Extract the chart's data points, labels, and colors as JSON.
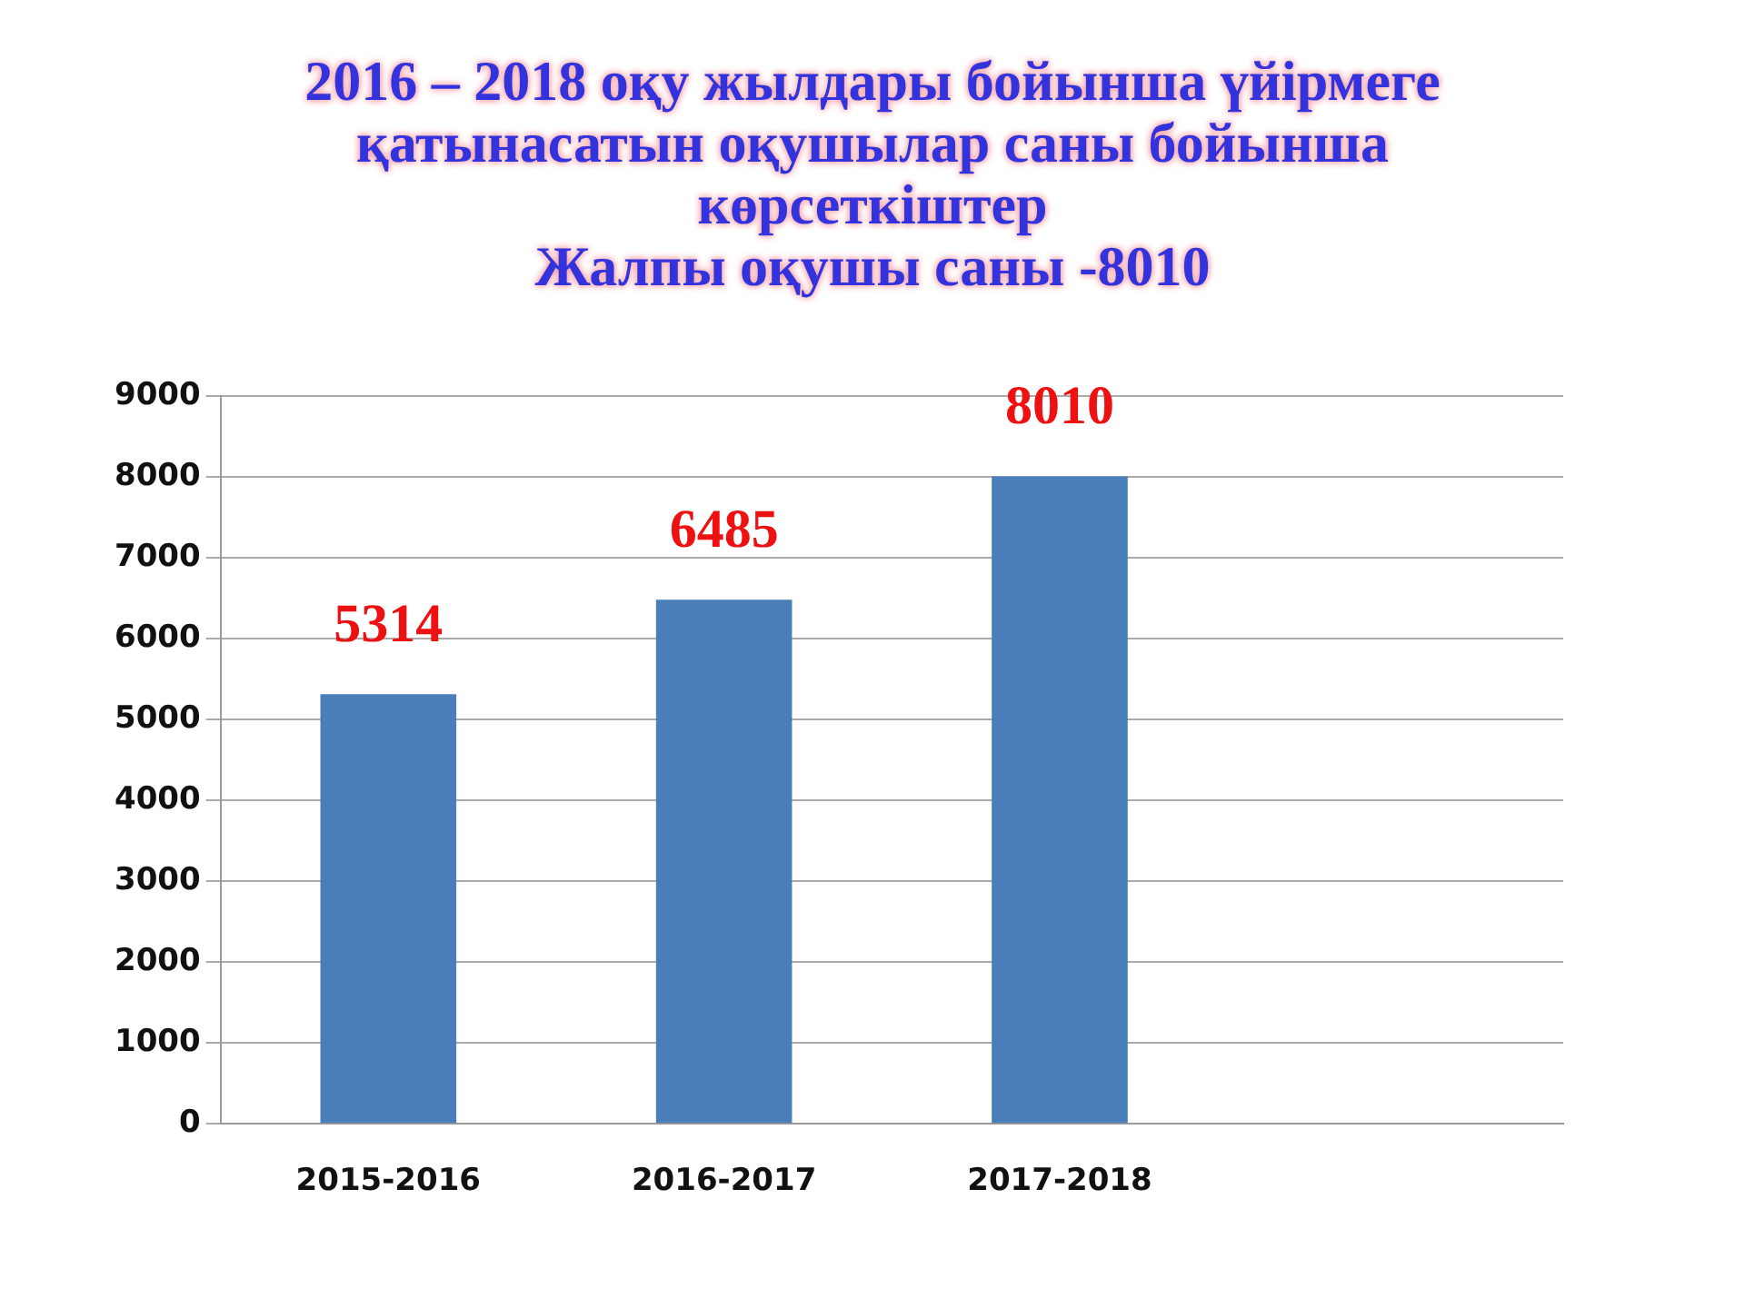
{
  "chart_data": {
    "type": "bar",
    "title": "2016 – 2018 оқу жылдары бойынша үйірмеге қатынасатын оқушылар саны бойынша көрсеткіштер",
    "subtitle": "Жалпы оқушы саны -8010",
    "categories": [
      "2015-2016",
      "2016-2017",
      "2017-2018",
      null
    ],
    "values": [
      5314,
      6485,
      8010,
      null
    ],
    "color": "#4a7ebb",
    "ylim": [
      0,
      9000
    ],
    "yticks": [
      0,
      1000,
      2000,
      3000,
      4000,
      5000,
      6000,
      7000,
      8000,
      9000
    ],
    "grid": "y",
    "data_labels": true
  }
}
